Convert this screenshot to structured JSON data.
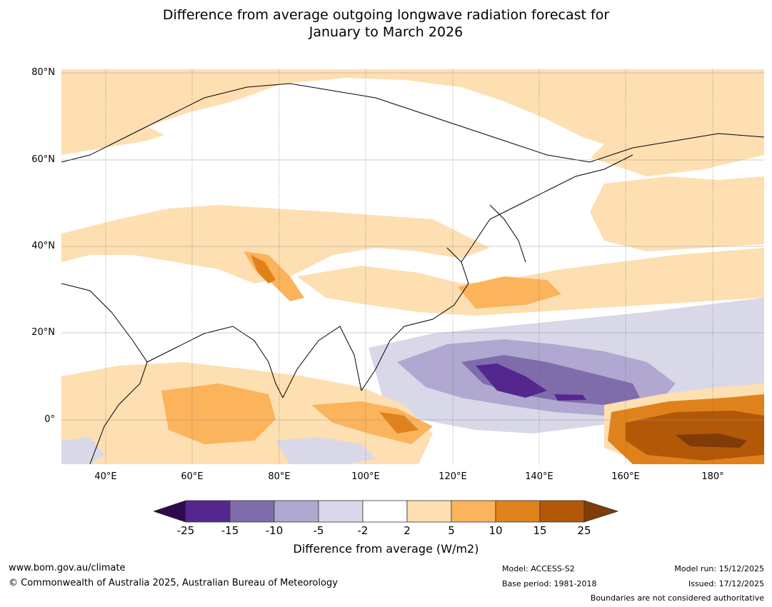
{
  "title": {
    "line1": "Difference from average outgoing longwave radiation forecast for",
    "line2": "January to March 2026"
  },
  "map": {
    "lat_ticks": [
      "80°N",
      "60°N",
      "40°N",
      "20°N",
      "0°"
    ],
    "lon_ticks": [
      "40°E",
      "60°E",
      "80°E",
      "100°E",
      "120°E",
      "140°E",
      "160°E",
      "180°"
    ],
    "region": "Asia and western Pacific"
  },
  "colorbar": {
    "title": "Difference from average (W/m2)",
    "ticks": [
      "-25",
      "-15",
      "-10",
      "-5",
      "-2",
      "2",
      "5",
      "10",
      "15",
      "25"
    ],
    "colors": {
      "below_min": "#2d0a4e",
      "bin1": "#54278f",
      "bin2": "#7f6dab",
      "bin3": "#b0a8d0",
      "bin4": "#d8d8e8",
      "bin5": "#ffffff",
      "bin6": "#fddfb2",
      "bin7": "#fbb35c",
      "bin8": "#e0821c",
      "bin9": "#b35807",
      "above_max": "#7f3b08"
    }
  },
  "footer": {
    "website": "www.bom.gov.au/climate",
    "copyright": "© Commonwealth of Australia 2025, Australian Bureau of Meteorology",
    "model": "Model: ACCESS-S2",
    "base_period": "Base period: 1981-2018",
    "model_run": "Model run: 15/12/2025",
    "issued": "Issued: 17/12/2025",
    "disclaimer": "Boundaries are not considered authoritative"
  }
}
